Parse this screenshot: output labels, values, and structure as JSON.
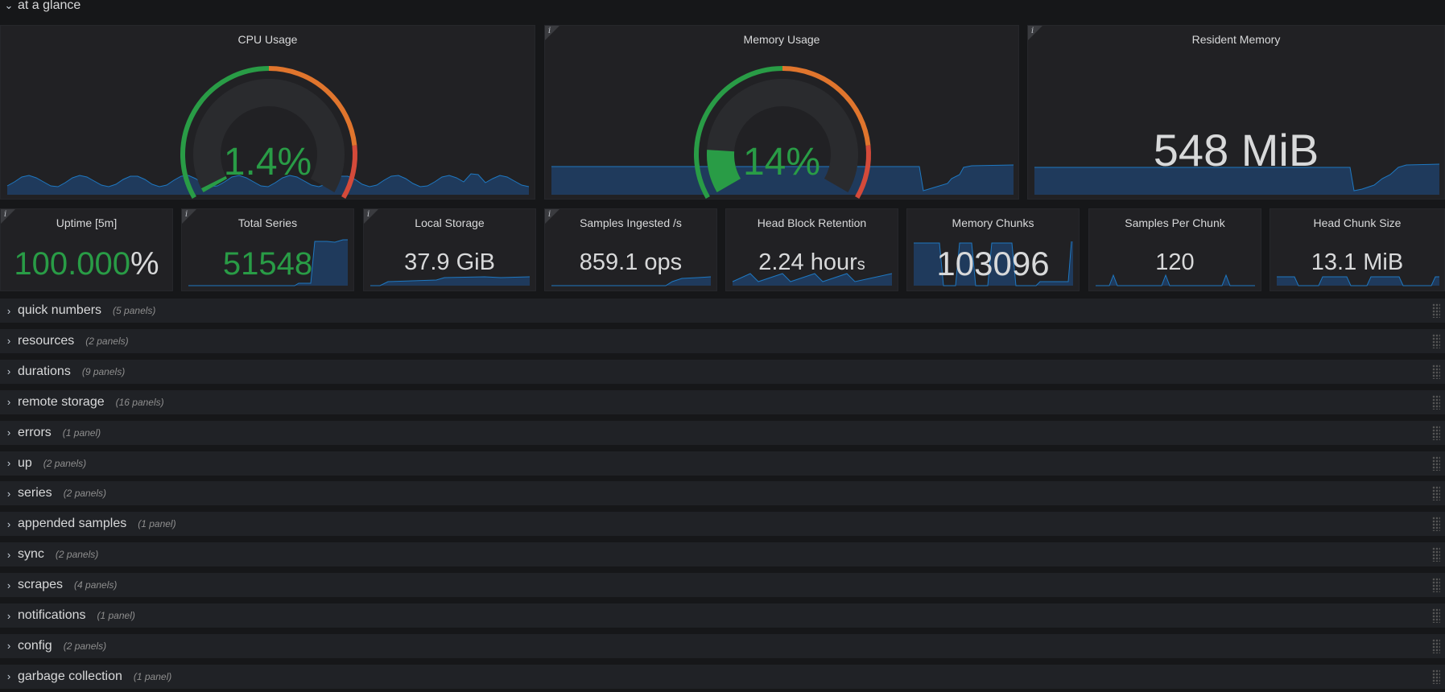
{
  "section": {
    "title": "at a glance",
    "chevron": "chevron-down-icon"
  },
  "colors": {
    "green": "#299c46",
    "orange": "#e0752d",
    "red": "#d44a3a",
    "spark_line": "#1f78c1",
    "spark_fill": "#1f3a5c",
    "text": "#d8d9da"
  },
  "top_panels": [
    {
      "title": "CPU Usage",
      "value": "1.4%",
      "gauge_value": 1.4,
      "gauge_max": 100,
      "has_info": false
    },
    {
      "title": "Memory Usage",
      "value": "14%",
      "gauge_value": 14,
      "gauge_max": 100,
      "has_info": true
    },
    {
      "title": "Resident Memory",
      "value": "548 MiB",
      "has_info": true
    }
  ],
  "stats": [
    {
      "title": "Uptime [5m]",
      "value": "100.000",
      "unit": "%",
      "has_info": true
    },
    {
      "title": "Total Series",
      "value": "51548",
      "has_info": true
    },
    {
      "title": "Local Storage",
      "value": "37.9 GiB",
      "has_info": true
    },
    {
      "title": "Samples Ingested /s",
      "value": "859.1 ops",
      "has_info": true
    },
    {
      "title": "Head Block Retention",
      "value": "2.24 hour",
      "unit": "s",
      "has_info": false
    },
    {
      "title": "Memory Chunks",
      "value": "103096",
      "has_info": false
    },
    {
      "title": "Samples Per Chunk",
      "value": "120",
      "has_info": false
    },
    {
      "title": "Head Chunk Size",
      "value": "13.1 MiB",
      "has_info": false
    }
  ],
  "rows": [
    {
      "title": "quick numbers",
      "count": "(5 panels)"
    },
    {
      "title": "resources",
      "count": "(2 panels)"
    },
    {
      "title": "durations",
      "count": "(9 panels)"
    },
    {
      "title": "remote storage",
      "count": "(16 panels)"
    },
    {
      "title": "errors",
      "count": "(1 panel)"
    },
    {
      "title": "up",
      "count": "(2 panels)"
    },
    {
      "title": "series",
      "count": "(2 panels)"
    },
    {
      "title": "appended samples",
      "count": "(1 panel)"
    },
    {
      "title": "sync",
      "count": "(2 panels)"
    },
    {
      "title": "scrapes",
      "count": "(4 panels)"
    },
    {
      "title": "notifications",
      "count": "(1 panel)"
    },
    {
      "title": "config",
      "count": "(2 panels)"
    },
    {
      "title": "garbage collection",
      "count": "(1 panel)"
    }
  ]
}
